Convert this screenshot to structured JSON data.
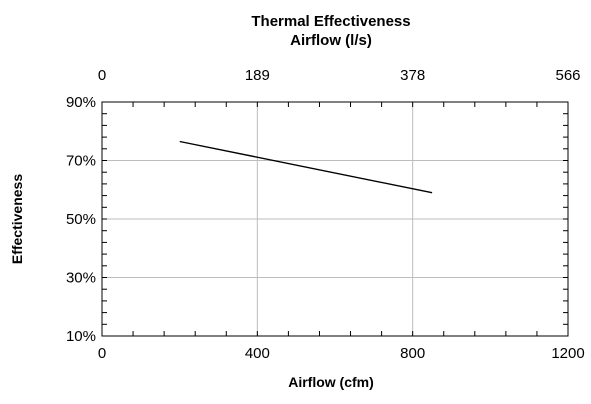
{
  "chart_data": {
    "type": "line",
    "title": "Thermal Effectiveness",
    "top_axis_label": "Airflow (l/s)",
    "top_ticks": [
      "0",
      "189",
      "378",
      "566"
    ],
    "xlabel": "Airflow (cfm)",
    "ylabel": "Effectiveness",
    "xlim": [
      0,
      1200
    ],
    "ylim": [
      10,
      90
    ],
    "x_ticks": [
      0,
      400,
      800,
      1200
    ],
    "x_tick_labels": [
      "0",
      "400",
      "800",
      "1200"
    ],
    "y_ticks": [
      10,
      30,
      50,
      70,
      90
    ],
    "y_tick_labels": [
      "10%",
      "30%",
      "50%",
      "70%",
      "90%"
    ],
    "grid": true,
    "legend": "none",
    "series": [
      {
        "x": [
          200,
          850
        ],
        "y": [
          76.5,
          59.0
        ],
        "color": "#000000"
      }
    ]
  }
}
